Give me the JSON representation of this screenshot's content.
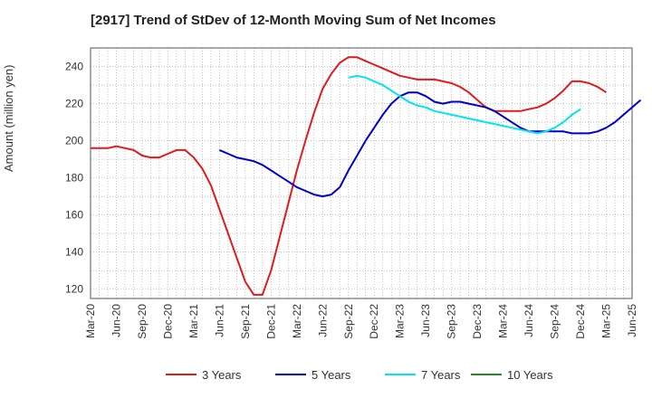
{
  "chart_data": {
    "type": "line",
    "title": "[2917]  Trend of StDev of 12-Month Moving Sum of Net Incomes",
    "ylabel": "Amount (million yen)",
    "xlabel": "",
    "ylim": [
      115,
      250
    ],
    "yticks": [
      120,
      140,
      160,
      180,
      200,
      220,
      240
    ],
    "xticks": [
      "Mar-20",
      "Jun-20",
      "Sep-20",
      "Dec-20",
      "Mar-21",
      "Jun-21",
      "Sep-21",
      "Dec-21",
      "Mar-22",
      "Jun-22",
      "Sep-22",
      "Dec-22",
      "Mar-23",
      "Jun-23",
      "Sep-23",
      "Dec-23",
      "Mar-24",
      "Jun-24",
      "Sep-24",
      "Dec-24",
      "Mar-25",
      "Jun-25"
    ],
    "grid": true,
    "legend_position": "bottom",
    "series": [
      {
        "name": "3 Years",
        "color": "#e31a1c",
        "start_index": 0,
        "values": [
          196,
          196,
          196,
          197,
          196,
          195,
          192,
          191,
          191,
          193,
          195,
          195,
          191,
          185,
          176,
          163,
          150,
          137,
          124,
          117,
          117,
          130,
          148,
          166,
          184,
          200,
          215,
          228,
          236,
          242,
          245,
          245,
          243,
          241,
          239,
          237,
          235,
          234,
          233,
          233,
          233,
          232,
          231,
          229,
          226,
          222,
          218,
          216,
          216,
          216,
          216,
          217,
          218,
          220,
          223,
          227,
          232,
          232,
          231,
          229,
          226
        ]
      },
      {
        "name": "5 Years",
        "color": "#0000cd",
        "start_index": 15,
        "values": [
          195,
          193,
          191,
          190,
          189,
          187,
          184,
          181,
          178,
          175,
          173,
          171,
          170,
          171,
          175,
          184,
          192,
          200,
          207,
          214,
          220,
          224,
          226,
          226,
          224,
          221,
          220,
          221,
          221,
          220,
          219,
          218,
          216,
          213,
          210,
          207,
          205,
          205,
          205,
          205,
          205,
          204,
          204,
          204,
          205,
          207,
          210,
          214,
          218,
          222
        ]
      },
      {
        "name": "7 Years",
        "color": "#00e5ee",
        "start_index": 30,
        "values": [
          234,
          235,
          234,
          232,
          230,
          227,
          224,
          221,
          219,
          218,
          216,
          215,
          214,
          213,
          212,
          211,
          210,
          209,
          208,
          207,
          206,
          205,
          204,
          205,
          207,
          210,
          214,
          217
        ]
      },
      {
        "name": "10 Years",
        "color": "#228b22",
        "start_index": 0,
        "values": []
      }
    ]
  }
}
